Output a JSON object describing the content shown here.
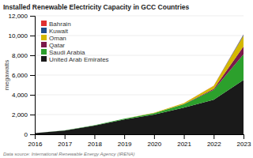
{
  "chart_data": {
    "type": "area",
    "stacked": true,
    "title": "Installed Renewable Electricity Capacity in GCC Countries",
    "y_label": "megawatts",
    "annotations": [
      "Data source: International Renewable Energy Agency (IRENA)"
    ],
    "x": [
      2016,
      2017,
      2018,
      2019,
      2020,
      2021,
      2022,
      2023
    ],
    "xlim": [
      2016,
      2023
    ],
    "xticks": [
      2016,
      2017,
      2018,
      2019,
      2020,
      2021,
      2022,
      2023
    ],
    "ylim": [
      0,
      12000
    ],
    "yticks": [
      0,
      {
        "value": 2000,
        "label": "2,000"
      },
      {
        "value": 4000,
        "label": "4,000"
      },
      {
        "value": 6000,
        "label": "6,000"
      },
      {
        "value": 8000,
        "label": "8,000"
      },
      {
        "value": 10000,
        "label": "10,000"
      },
      {
        "value": 12000,
        "label": "12,000"
      }
    ],
    "grid": true,
    "legend": "upper left",
    "series": [
      {
        "name": "United Arab Emirates",
        "color": "#1a1a1a",
        "values": [
          120,
          380,
          880,
          1500,
          2000,
          2700,
          3500,
          5500
        ]
      },
      {
        "name": "Saudi Arabia",
        "color": "#2ca02c",
        "values": [
          10,
          20,
          40,
          80,
          150,
          350,
          1000,
          2600
        ]
      },
      {
        "name": "Qatar",
        "color": "#7b1a4b",
        "values": [
          0,
          0,
          0,
          0,
          0,
          20,
          100,
          800
        ]
      },
      {
        "name": "Oman",
        "color": "#d4b800",
        "values": [
          0,
          0,
          0,
          10,
          30,
          100,
          300,
          1100
        ]
      },
      {
        "name": "Kuwait",
        "color": "#1f4e8c",
        "values": [
          0,
          0,
          0,
          0,
          0,
          0,
          10,
          100
        ]
      },
      {
        "name": "Bahrain",
        "color": "#e03030",
        "values": [
          0,
          0,
          0,
          0,
          0,
          0,
          5,
          30
        ]
      }
    ]
  }
}
